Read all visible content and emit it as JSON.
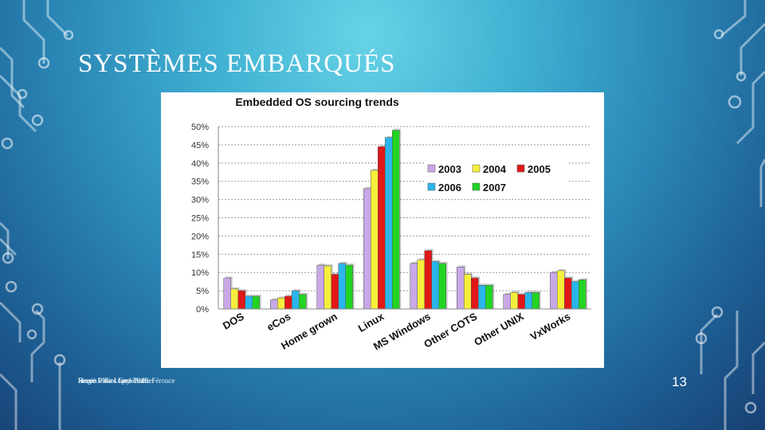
{
  "slide": {
    "title": "SYSTÈMES EMBARQUÉS",
    "footer_lines": [
      "Sergio Paez Lopez 2016",
      "Rouen - Yves Lechevallier",
      "Hervé Dilliot Guy-Tintin Féronce"
    ],
    "slide_number": "13"
  },
  "colors": {
    "2003": "#c8a8e6",
    "2004": "#f6ef3c",
    "2005": "#e01818",
    "2006": "#2ab6ec",
    "2007": "#22d422"
  },
  "chart_data": {
    "type": "bar",
    "title": "Embedded OS sourcing trends",
    "categories": [
      "DOS",
      "eCos",
      "Home grown",
      "Linux",
      "MS Windows",
      "Other COTS",
      "Other UNIX",
      "VxWorks"
    ],
    "series": [
      {
        "name": "2003",
        "values": [
          8.5,
          2.5,
          12,
          33,
          12.5,
          11.5,
          4,
          10
        ]
      },
      {
        "name": "2004",
        "values": [
          5.5,
          3,
          11.8,
          38,
          13.5,
          9.5,
          4.5,
          10.5
        ]
      },
      {
        "name": "2005",
        "values": [
          5,
          3.5,
          9.5,
          44.5,
          16,
          8.5,
          4,
          8.5
        ]
      },
      {
        "name": "2006",
        "values": [
          3.5,
          5,
          12.5,
          47,
          13,
          6.5,
          4.5,
          7.5
        ]
      },
      {
        "name": "2007",
        "values": [
          3.5,
          4,
          12,
          49,
          12.5,
          6.5,
          4.5,
          8
        ]
      }
    ],
    "y_ticks": [
      "0%",
      "5%",
      "10%",
      "15%",
      "20%",
      "25%",
      "30%",
      "35%",
      "40%",
      "45%",
      "50%"
    ],
    "ylim": [
      0,
      50
    ],
    "grid": true,
    "legend_placement": "top-right"
  }
}
